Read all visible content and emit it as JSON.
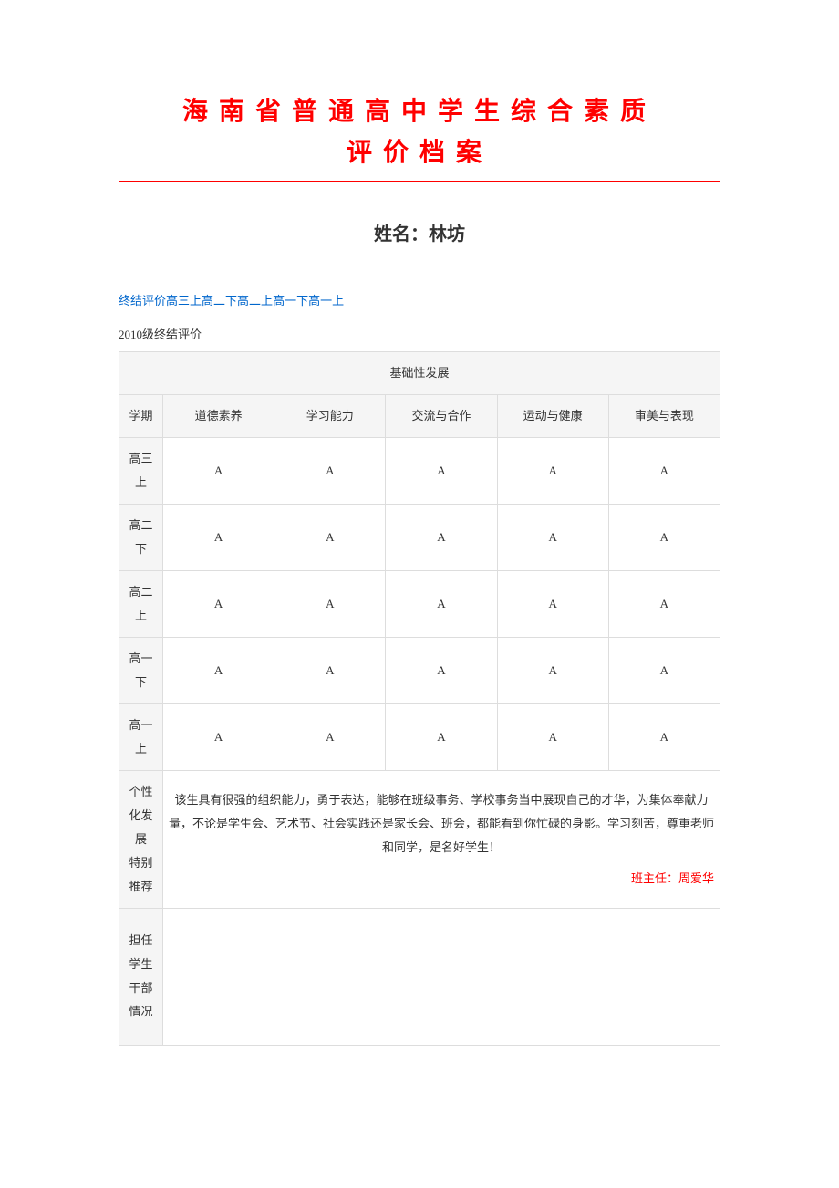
{
  "title_line1": "海南省普通高中学生综合素质",
  "title_line2": "评价档案",
  "name_label": "姓名：",
  "name_value": "林坊",
  "nav": {
    "items": [
      "终结评价",
      "高三上",
      "高二下",
      "高二上",
      "高一下",
      "高一上"
    ]
  },
  "section_title": "2010级终结评价",
  "table": {
    "hdr_span": "基础性发展",
    "col_term": "学期",
    "columns": [
      "道德素养",
      "学习能力",
      "交流与合作",
      "运动与健康",
      "审美与表现"
    ],
    "rows": [
      {
        "term_a": "高三",
        "term_b": "上",
        "vals": [
          "A",
          "A",
          "A",
          "A",
          "A"
        ]
      },
      {
        "term_a": "高二",
        "term_b": "下",
        "vals": [
          "A",
          "A",
          "A",
          "A",
          "A"
        ]
      },
      {
        "term_a": "高二",
        "term_b": "上",
        "vals": [
          "A",
          "A",
          "A",
          "A",
          "A"
        ]
      },
      {
        "term_a": "高一",
        "term_b": "下",
        "vals": [
          "A",
          "A",
          "A",
          "A",
          "A"
        ]
      },
      {
        "term_a": "高一",
        "term_b": "上",
        "vals": [
          "A",
          "A",
          "A",
          "A",
          "A"
        ]
      }
    ],
    "reco_label_chars": [
      "个性",
      "化发",
      "展",
      "特别",
      "推荐"
    ],
    "comment": "该生具有很强的组织能力，勇于表达，能够在班级事务、学校事务当中展现自己的才华，为集体奉献力量，不论是学生会、艺术节、社会实践还是家长会、班会，都能看到你忙碌的身影。学习刻苦，尊重老师和同学，是名好学生！",
    "teacher_sig": "班主任：周爱华",
    "cadre_label_chars": [
      "担任",
      "学生",
      "干部",
      "情况"
    ]
  },
  "colors": {
    "red": "#ff0000",
    "link": "#0066cc",
    "border": "#dddddd",
    "header_bg": "#f5f5f5",
    "text": "#333333",
    "background": "#ffffff"
  }
}
